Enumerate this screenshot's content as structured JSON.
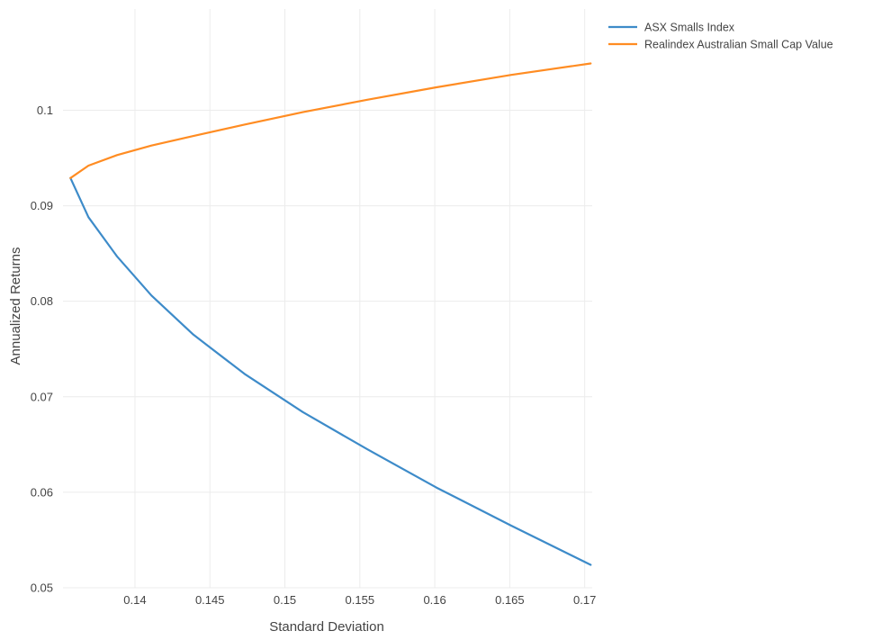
{
  "chart_data": {
    "type": "line",
    "title": "",
    "xlabel": "Standard Deviation",
    "ylabel": "Annualized Returns",
    "xlim": [
      0.1352,
      0.1705
    ],
    "ylim": [
      0.05,
      0.1106
    ],
    "x_ticks": [
      0.14,
      0.145,
      0.15,
      0.155,
      0.16,
      0.165,
      0.17
    ],
    "x_tick_labels": [
      "0.14",
      "0.145",
      "0.15",
      "0.155",
      "0.16",
      "0.165",
      "0.17"
    ],
    "y_ticks": [
      0.05,
      0.06,
      0.07,
      0.08,
      0.09,
      0.1
    ],
    "y_tick_labels": [
      "0.05",
      "0.06",
      "0.07",
      "0.08",
      "0.09",
      "0.1"
    ],
    "grid": true,
    "legend_position": "top-right",
    "series": [
      {
        "name": "ASX Smalls Index",
        "color": "#3d8bc9",
        "x": [
          0.1357,
          0.1369,
          0.1388,
          0.1411,
          0.1439,
          0.1473,
          0.1512,
          0.1555,
          0.1601,
          0.1651,
          0.1704
        ],
        "y": [
          0.0929,
          0.0888,
          0.0847,
          0.0806,
          0.0765,
          0.0724,
          0.0684,
          0.0645,
          0.0605,
          0.0565,
          0.0524
        ]
      },
      {
        "name": "Realindex Australian Small Cap Value",
        "color": "#ff8c22",
        "x": [
          0.1357,
          0.1369,
          0.1388,
          0.1411,
          0.1439,
          0.1473,
          0.1512,
          0.1555,
          0.1601,
          0.1651,
          0.1704
        ],
        "y": [
          0.0929,
          0.0942,
          0.0953,
          0.0963,
          0.0973,
          0.0985,
          0.0998,
          0.1011,
          0.1024,
          0.1037,
          0.1049
        ]
      }
    ]
  }
}
